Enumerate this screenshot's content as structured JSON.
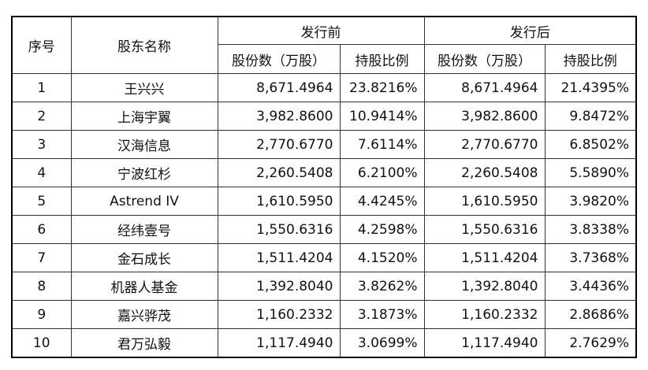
{
  "table": {
    "group_headers": [
      "序号",
      "股东名称",
      "发行前",
      "发行后"
    ],
    "sub_headers": [
      "股份数（万股）",
      "持股比例",
      "股份数（万股）",
      "持股比例"
    ],
    "rows": [
      [
        "1",
        "王兴兴",
        "8,671.4964",
        "23.8216%",
        "8,671.4964",
        "21.4395%"
      ],
      [
        "2",
        "上海宇翼",
        "3,982.8600",
        "10.9414%",
        "3,982.8600",
        "9.8472%"
      ],
      [
        "3",
        "汉海信息",
        "2,770.6770",
        "7.6114%",
        "2,770.6770",
        "6.8502%"
      ],
      [
        "4",
        "宁波红杉",
        "2,260.5408",
        "6.2100%",
        "2,260.5408",
        "5.5890%"
      ],
      [
        "5",
        "Astrend IV",
        "1,610.5950",
        "4.4245%",
        "1,610.5950",
        "3.9820%"
      ],
      [
        "6",
        "经纬壹号",
        "1,550.6316",
        "4.2598%",
        "1,550.6316",
        "3.8338%"
      ],
      [
        "7",
        "金石成长",
        "1,511.4204",
        "4.1520%",
        "1,511.4204",
        "3.7368%"
      ],
      [
        "8",
        "机器人基金",
        "1,392.8040",
        "3.8262%",
        "1,392.8040",
        "3.4436%"
      ],
      [
        "9",
        "嘉兴骅茂",
        "1,160.2332",
        "3.1873%",
        "1,160.2332",
        "2.8686%"
      ],
      [
        "10",
        "君万弘毅",
        "1,117.4940",
        "3.0699%",
        "1,117.4940",
        "2.7629%"
      ]
    ]
  }
}
